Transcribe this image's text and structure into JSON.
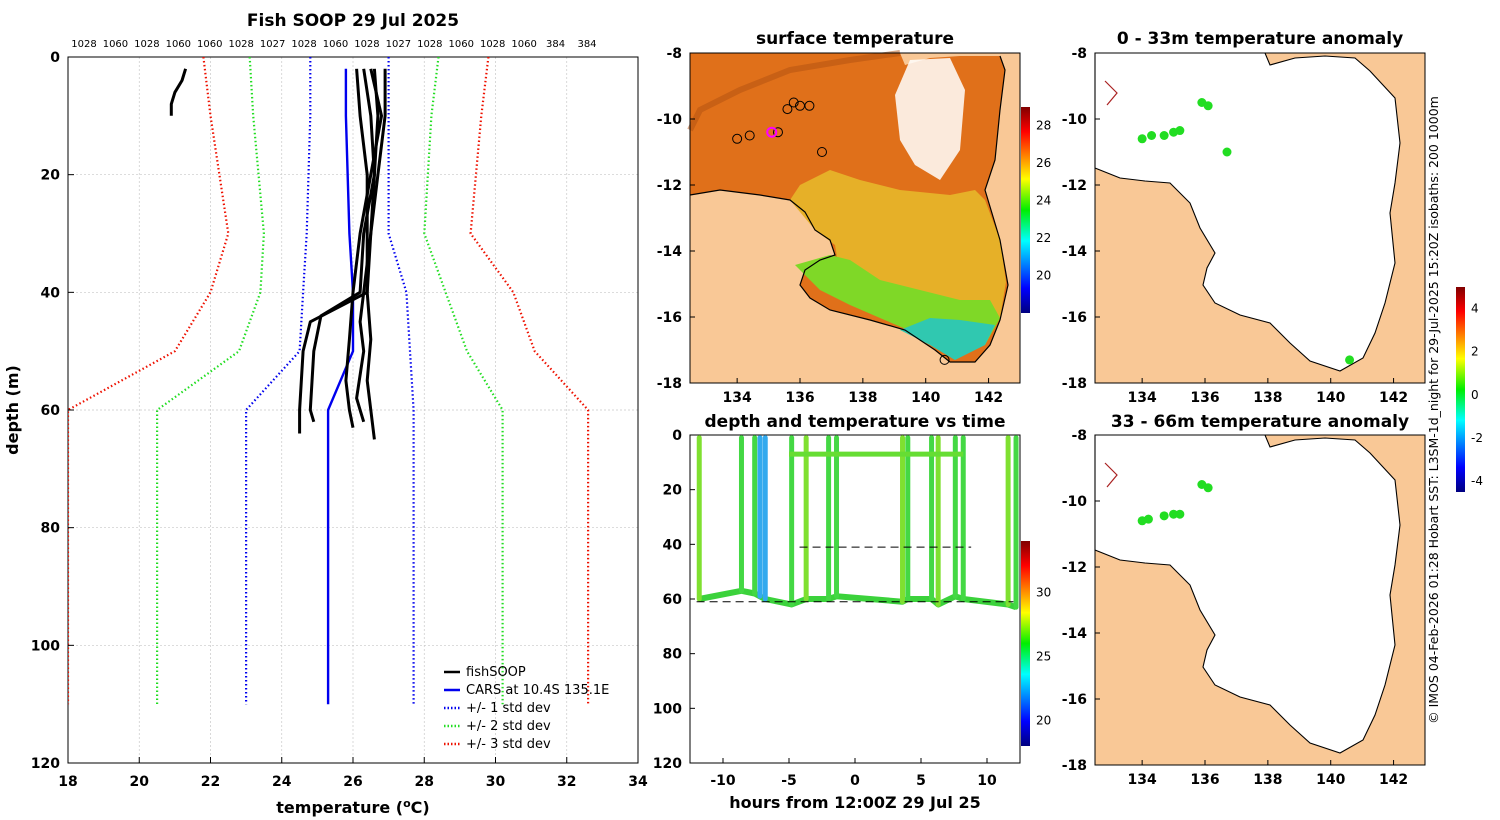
{
  "colors": {
    "land": "#f9c896",
    "fishsoop": "#000000",
    "cars": "#0000ee",
    "std1": "#0000ee",
    "std2": "#22dd22",
    "std3": "#ee1100",
    "coast": "#000000"
  },
  "side_caption": "© IMOS 04-Feb-2026 01:28 Hobart SST: L3SM-1d_night for 29-Jul-2025 15:20Z isobaths: 200  1000m",
  "chart_data": [
    {
      "id": "profile",
      "type": "line",
      "title": "Fish SOOP 29 Jul 2025",
      "xlabel": "temperature (",
      "xlabel_sup": "o",
      "xlabel_end": "C)",
      "ylabel": "depth (m)",
      "xlim": [
        18,
        34
      ],
      "ylim": [
        0,
        120
      ],
      "xticks": [
        "18",
        "20",
        "22",
        "24",
        "26",
        "28",
        "30",
        "32",
        "34"
      ],
      "yticks": [
        "0",
        "20",
        "40",
        "60",
        "80",
        "100",
        "120"
      ],
      "top_labels": [
        "1028",
        "1060",
        "1028",
        "1060",
        "1060",
        "1028",
        "1027",
        "1028",
        "1060",
        "1028",
        "1027",
        "1028",
        "1060",
        "1028",
        "1060",
        "384",
        "384"
      ],
      "legend": [
        {
          "label": "fishSOOP",
          "style": "solid",
          "color": "#000000"
        },
        {
          "label": "CARS at 10.4S 135.1E",
          "style": "solid",
          "color": "#0000ee"
        },
        {
          "label": "+/- 1 std dev",
          "style": "dotted",
          "color": "#0000ee"
        },
        {
          "label": "+/- 2 std dev",
          "style": "dotted",
          "color": "#22dd22"
        },
        {
          "label": "+/- 3 std dev",
          "style": "dotted",
          "color": "#ee1100"
        }
      ],
      "series": [
        {
          "name": "CARS",
          "style": "solid",
          "color": "#0000ee",
          "x": [
            25.8,
            25.8,
            25.9,
            26.0,
            26.0,
            25.3,
            25.3
          ],
          "y": [
            2,
            10,
            30,
            40,
            50,
            60,
            110
          ]
        },
        {
          "name": "-1 std",
          "style": "dotted",
          "color": "#0000ee",
          "x": [
            24.8,
            24.8,
            24.7,
            24.6,
            24.5,
            23.0,
            23.0
          ],
          "y": [
            0,
            10,
            30,
            40,
            50,
            60,
            110
          ]
        },
        {
          "name": "+1 std",
          "style": "dotted",
          "color": "#0000ee",
          "x": [
            27.0,
            27.0,
            27.0,
            27.5,
            27.6,
            27.7,
            27.7
          ],
          "y": [
            0,
            10,
            30,
            40,
            50,
            60,
            110
          ]
        },
        {
          "name": "-2 std",
          "style": "dotted",
          "color": "#22dd22",
          "x": [
            23.1,
            23.2,
            23.5,
            23.4,
            22.8,
            20.5,
            20.5
          ],
          "y": [
            0,
            10,
            30,
            40,
            50,
            60,
            110
          ]
        },
        {
          "name": "+2 std",
          "style": "dotted",
          "color": "#22dd22",
          "x": [
            28.4,
            28.2,
            28.0,
            28.6,
            29.2,
            30.2,
            30.2
          ],
          "y": [
            0,
            10,
            30,
            40,
            50,
            60,
            110
          ]
        },
        {
          "name": "-3 std",
          "style": "dotted",
          "color": "#ee1100",
          "x": [
            21.8,
            22.0,
            22.5,
            22.0,
            21.0,
            18.0,
            18.0
          ],
          "y": [
            0,
            10,
            30,
            40,
            50,
            60,
            110
          ]
        },
        {
          "name": "+3 std",
          "style": "dotted",
          "color": "#ee1100",
          "x": [
            29.8,
            29.6,
            29.3,
            30.5,
            31.1,
            32.6,
            32.6
          ],
          "y": [
            0,
            10,
            30,
            40,
            50,
            60,
            110
          ]
        },
        {
          "name": "fishSOOP cast A",
          "style": "solid",
          "color": "#000000",
          "x": [
            21.3,
            21.2,
            21.0,
            20.9,
            20.9
          ],
          "y": [
            2,
            4,
            6,
            8,
            10
          ]
        },
        {
          "name": "fishSOOP cast B",
          "style": "solid",
          "color": "#000000",
          "x": [
            26.3,
            26.5,
            26.6,
            26.5,
            26.3,
            26.2,
            26.3,
            26.1,
            26.2,
            26.3
          ],
          "y": [
            2,
            10,
            20,
            30,
            40,
            45,
            50,
            58,
            60,
            62
          ]
        },
        {
          "name": "fishSOOP cast C",
          "style": "solid",
          "color": "#000000",
          "x": [
            26.9,
            26.9,
            26.7,
            26.5,
            26.4,
            24.8,
            24.6,
            24.5,
            24.5
          ],
          "y": [
            2,
            10,
            20,
            30,
            40,
            45,
            50,
            60,
            64
          ]
        },
        {
          "name": "fishSOOP cast D",
          "style": "solid",
          "color": "#000000",
          "x": [
            26.6,
            26.7,
            26.6,
            26.3,
            26.2,
            25.1,
            24.9,
            24.8,
            24.9
          ],
          "y": [
            2,
            10,
            20,
            30,
            40,
            44,
            50,
            60,
            62
          ]
        },
        {
          "name": "fishSOOP cast E",
          "style": "solid",
          "color": "#000000",
          "x": [
            26.5,
            26.8,
            26.5,
            26.2,
            26.0,
            25.9,
            25.8,
            25.9,
            26.0
          ],
          "y": [
            2,
            10,
            20,
            30,
            40,
            48,
            55,
            60,
            63
          ]
        },
        {
          "name": "fishSOOP cast F",
          "style": "solid",
          "color": "#000000",
          "x": [
            26.1,
            26.2,
            26.4,
            26.4,
            26.4,
            26.5,
            26.4,
            26.5,
            26.6
          ],
          "y": [
            2,
            10,
            20,
            30,
            40,
            48,
            55,
            60,
            65
          ]
        }
      ]
    },
    {
      "id": "sst_map",
      "type": "heatmap",
      "title": "surface temperature",
      "xlim": [
        132.5,
        143
      ],
      "ylim": [
        -18,
        -8
      ],
      "xticks": [
        "134",
        "136",
        "138",
        "140",
        "142"
      ],
      "yticks": [
        "-8",
        "-10",
        "-12",
        "-14",
        "-16",
        "-18"
      ],
      "colorbar": {
        "ticks": [
          "20",
          "22",
          "24",
          "26",
          "28"
        ],
        "range": [
          18,
          29
        ]
      },
      "markers_black": [
        [
          135.8,
          -9.5
        ],
        [
          136.0,
          -9.6
        ],
        [
          136.3,
          -9.6
        ],
        [
          135.6,
          -9.7
        ],
        [
          134.0,
          -10.6
        ],
        [
          134.4,
          -10.5
        ],
        [
          135.3,
          -10.4
        ],
        [
          136.7,
          -11.0
        ],
        [
          140.6,
          -17.3
        ]
      ],
      "marker_magenta": [
        135.1,
        -10.4
      ]
    },
    {
      "id": "time_plot",
      "type": "scatter",
      "title": "depth and temperature vs time",
      "xlabel": "hours from 12:00Z 29 Jul 25",
      "xlim": [
        -12.5,
        12.5
      ],
      "ylim": [
        0,
        120
      ],
      "xticks": [
        "-10",
        "-5",
        "0",
        "5",
        "10"
      ],
      "yticks": [
        "0",
        "20",
        "40",
        "60",
        "80",
        "100",
        "120"
      ],
      "colorbar": {
        "ticks": [
          "20",
          "25",
          "30"
        ],
        "range": [
          18,
          34
        ]
      },
      "casts_hours": [
        -11.8,
        -8.6,
        -7.6,
        -7.2,
        -6.8,
        -4.8,
        -3.7,
        -2.0,
        -1.4,
        3.6,
        4.0,
        5.8,
        6.3,
        7.6,
        8.2,
        11.6,
        12.2
      ],
      "bottom_depth": [
        60,
        57,
        58,
        59,
        60,
        62,
        60,
        60,
        59,
        61,
        60,
        60,
        62,
        59,
        60,
        62,
        63
      ],
      "shallow_segments": [
        {
          "from": -5.0,
          "to": 8.2,
          "depth": 7
        }
      ],
      "dashed_lines": [
        {
          "from": -4.2,
          "to": 8.8,
          "depth": 41
        },
        {
          "from": -12.0,
          "to": 12.0,
          "depth": 61
        }
      ]
    },
    {
      "id": "anom_0_33",
      "type": "scatter",
      "title": "0 - 33m temperature anomaly",
      "xlim": [
        132.5,
        143
      ],
      "ylim": [
        -18,
        -8
      ],
      "xticks": [
        "134",
        "136",
        "138",
        "140",
        "142"
      ],
      "yticks": [
        "-8",
        "-10",
        "-12",
        "-14",
        "-16",
        "-18"
      ],
      "points": [
        [
          135.9,
          -9.5
        ],
        [
          136.1,
          -9.6
        ],
        [
          134.0,
          -10.6
        ],
        [
          134.3,
          -10.5
        ],
        [
          134.7,
          -10.5
        ],
        [
          135.0,
          -10.4
        ],
        [
          135.2,
          -10.35
        ],
        [
          136.7,
          -11.0
        ],
        [
          140.6,
          -17.3
        ]
      ]
    },
    {
      "id": "anom_33_66",
      "type": "scatter",
      "title": "33 - 66m temperature anomaly",
      "xlim": [
        132.5,
        143
      ],
      "ylim": [
        -18,
        -8
      ],
      "xticks": [
        "134",
        "136",
        "138",
        "140",
        "142"
      ],
      "yticks": [
        "-8",
        "-10",
        "-12",
        "-14",
        "-16",
        "-18"
      ],
      "points": [
        [
          135.9,
          -9.5
        ],
        [
          136.1,
          -9.6
        ],
        [
          134.0,
          -10.6
        ],
        [
          134.2,
          -10.55
        ],
        [
          134.7,
          -10.45
        ],
        [
          135.0,
          -10.4
        ],
        [
          135.2,
          -10.4
        ]
      ],
      "colorbar": {
        "ticks": [
          "4",
          "2",
          "0",
          "-2",
          "-4"
        ],
        "range": [
          -4.5,
          5
        ]
      }
    }
  ]
}
